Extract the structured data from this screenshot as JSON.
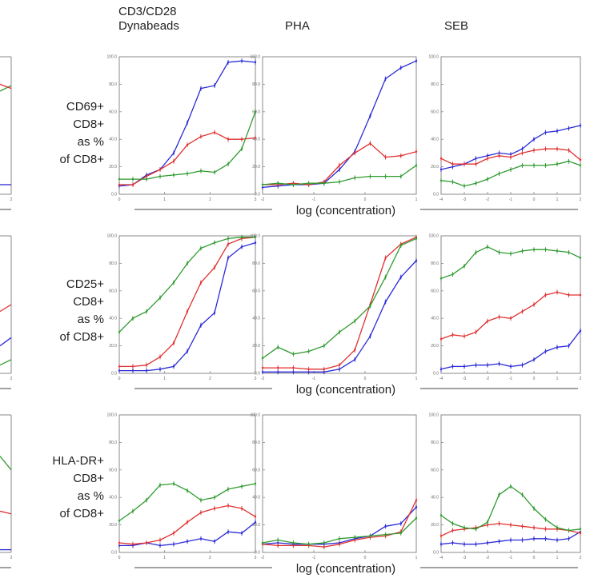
{
  "column_headers": [
    [
      "CD3/CD28",
      "Dynabeads"
    ],
    [
      "PHA"
    ],
    [
      "SEB"
    ]
  ],
  "row_labels": [
    [
      "CD69+",
      "CD8+",
      "as %",
      "of CD8+"
    ],
    [
      "CD25+",
      "CD8+",
      "as %",
      "of CD8+"
    ],
    [
      "HLA-DR+",
      "CD8+",
      "as %",
      "of CD8+"
    ]
  ],
  "shared_xlabel": "log (concentration)",
  "colors": {
    "blue": "#2a2ad6",
    "red": "#e03030",
    "green": "#2f9a2f",
    "axis": "#888888"
  },
  "chart_data": [
    {
      "type": "line",
      "row": 0,
      "col": 0,
      "ylim": [
        0,
        100
      ],
      "xlim": [
        0,
        3
      ],
      "yticks": [
        "0.0",
        "20.0",
        "40.0",
        "60.0",
        "80.0",
        "100.0"
      ],
      "xticks": [
        "0",
        "1",
        "2",
        "3"
      ],
      "x": [
        0,
        0.3,
        0.6,
        0.9,
        1.2,
        1.5,
        1.8,
        2.1,
        2.4,
        2.7,
        3.0
      ],
      "series": [
        {
          "color": "blue",
          "values": [
            6,
            7,
            14,
            18,
            30,
            52,
            77,
            79,
            96,
            97,
            96
          ]
        },
        {
          "color": "red",
          "values": [
            7,
            7,
            13,
            18,
            24,
            36,
            42,
            45,
            40,
            40,
            41
          ]
        },
        {
          "color": "green",
          "values": [
            11,
            11,
            11,
            13,
            14,
            15,
            17,
            16,
            22,
            33,
            60
          ]
        }
      ]
    },
    {
      "type": "line",
      "row": 0,
      "col": 1,
      "ylim": [
        0,
        100
      ],
      "xlim": [
        -2,
        1
      ],
      "yticks": [
        "0.0",
        "20.0",
        "40.0",
        "60.0",
        "80.0",
        "100.0"
      ],
      "xticks": [
        "-2",
        "-1",
        "0",
        "1"
      ],
      "x": [
        -2,
        -1.7,
        -1.4,
        -1.1,
        -0.8,
        -0.5,
        -0.2,
        0.1,
        0.4,
        0.7,
        1.0
      ],
      "series": [
        {
          "color": "blue",
          "values": [
            5,
            6,
            7,
            7,
            8,
            18,
            31,
            57,
            84,
            92,
            97
          ]
        },
        {
          "color": "red",
          "values": [
            7,
            7,
            8,
            7,
            9,
            21,
            30,
            37,
            27,
            28,
            31
          ]
        },
        {
          "color": "green",
          "values": [
            7,
            8,
            7,
            8,
            8,
            9,
            12,
            13,
            13,
            13,
            21
          ]
        }
      ]
    },
    {
      "type": "line",
      "row": 0,
      "col": 2,
      "ylim": [
        0,
        100
      ],
      "xlim": [
        -4,
        2
      ],
      "yticks": [
        "0.0",
        "20.0",
        "40.0",
        "60.0",
        "80.0",
        "100.0"
      ],
      "xticks": [
        "-4",
        "-3",
        "-2",
        "-1",
        "0",
        "1",
        "2"
      ],
      "x": [
        -4,
        -3.5,
        -3,
        -2.5,
        -2,
        -1.5,
        -1,
        -0.5,
        0,
        0.5,
        1,
        1.5,
        2
      ],
      "series": [
        {
          "color": "blue",
          "values": [
            18,
            20,
            22,
            26,
            28,
            30,
            29,
            33,
            40,
            45,
            46,
            48,
            50
          ]
        },
        {
          "color": "red",
          "values": [
            26,
            22,
            22,
            22,
            26,
            28,
            27,
            30,
            32,
            33,
            33,
            32,
            25
          ]
        },
        {
          "color": "green",
          "values": [
            10,
            9,
            6,
            8,
            11,
            15,
            18,
            21,
            21,
            21,
            22,
            24,
            21
          ]
        }
      ]
    },
    {
      "type": "line",
      "row": 1,
      "col": 0,
      "ylim": [
        0,
        100
      ],
      "xlim": [
        0,
        3
      ],
      "yticks": [
        "0.0",
        "20.0",
        "40.0",
        "60.0",
        "80.0",
        "100.0"
      ],
      "xticks": [
        "0",
        "1",
        "2",
        "3"
      ],
      "x": [
        0,
        0.3,
        0.6,
        0.9,
        1.2,
        1.5,
        1.8,
        2.1,
        2.4,
        2.7,
        3.0
      ],
      "series": [
        {
          "color": "blue",
          "values": [
            2,
            2,
            2,
            3,
            5,
            16,
            35,
            44,
            84,
            92,
            95
          ]
        },
        {
          "color": "red",
          "values": [
            5,
            5,
            6,
            12,
            22,
            45,
            66,
            77,
            94,
            98,
            99
          ]
        },
        {
          "color": "green",
          "values": [
            30,
            40,
            45,
            55,
            66,
            80,
            91,
            95,
            98,
            99,
            99
          ]
        }
      ]
    },
    {
      "type": "line",
      "row": 1,
      "col": 1,
      "ylim": [
        0,
        100
      ],
      "xlim": [
        -2,
        1
      ],
      "yticks": [
        "0.0",
        "20.0",
        "40.0",
        "60.0",
        "80.0",
        "100.0"
      ],
      "xticks": [
        "-2",
        "-1",
        "0",
        "1"
      ],
      "x": [
        -2,
        -1.7,
        -1.4,
        -1.1,
        -0.8,
        -0.5,
        -0.2,
        0.1,
        0.4,
        0.7,
        1.0
      ],
      "series": [
        {
          "color": "blue",
          "values": [
            1,
            1,
            1,
            1,
            1,
            3,
            10,
            27,
            52,
            70,
            82
          ]
        },
        {
          "color": "red",
          "values": [
            4,
            4,
            4,
            3,
            3,
            6,
            17,
            50,
            84,
            94,
            99
          ]
        },
        {
          "color": "green",
          "values": [
            11,
            19,
            14,
            16,
            20,
            30,
            38,
            49,
            70,
            93,
            98
          ]
        }
      ]
    },
    {
      "type": "line",
      "row": 1,
      "col": 2,
      "ylim": [
        0,
        100
      ],
      "xlim": [
        -4,
        2
      ],
      "yticks": [
        "0.0",
        "20.0",
        "40.0",
        "60.0",
        "80.0",
        "100.0"
      ],
      "xticks": [
        "-4",
        "-3",
        "-2",
        "-1",
        "0",
        "1",
        "2"
      ],
      "x": [
        -4,
        -3.5,
        -3,
        -2.5,
        -2,
        -1.5,
        -1,
        -0.5,
        0,
        0.5,
        1,
        1.5,
        2
      ],
      "series": [
        {
          "color": "blue",
          "values": [
            3,
            5,
            5,
            6,
            6,
            7,
            5,
            6,
            10,
            16,
            19,
            20,
            31
          ]
        },
        {
          "color": "red",
          "values": [
            25,
            28,
            27,
            30,
            38,
            41,
            40,
            45,
            50,
            57,
            59,
            57,
            57
          ]
        },
        {
          "color": "green",
          "values": [
            69,
            72,
            78,
            88,
            92,
            88,
            87,
            89,
            90,
            90,
            89,
            88,
            84
          ]
        }
      ]
    },
    {
      "type": "line",
      "row": 2,
      "col": 0,
      "ylim": [
        0,
        100
      ],
      "xlim": [
        0,
        3
      ],
      "yticks": [
        "0.0",
        "20.0",
        "40.0",
        "60.0",
        "80.0",
        "100.0"
      ],
      "xticks": [
        "0",
        "1",
        "2",
        "3"
      ],
      "x": [
        0,
        0.3,
        0.6,
        0.9,
        1.2,
        1.5,
        1.8,
        2.1,
        2.4,
        2.7,
        3.0
      ],
      "series": [
        {
          "color": "blue",
          "values": [
            5,
            5,
            7,
            5,
            6,
            8,
            10,
            8,
            15,
            14,
            22
          ]
        },
        {
          "color": "red",
          "values": [
            7,
            6,
            7,
            9,
            14,
            22,
            29,
            32,
            34,
            32,
            26
          ]
        },
        {
          "color": "green",
          "values": [
            23,
            30,
            38,
            49,
            50,
            45,
            38,
            40,
            46,
            48,
            50
          ]
        }
      ]
    },
    {
      "type": "line",
      "row": 2,
      "col": 1,
      "ylim": [
        0,
        100
      ],
      "xlim": [
        -2,
        1
      ],
      "yticks": [
        "0.0",
        "20.0",
        "40.0",
        "60.0",
        "80.0",
        "100.0"
      ],
      "xticks": [
        "-2",
        "-1",
        "0",
        "1"
      ],
      "x": [
        -2,
        -1.7,
        -1.4,
        -1.1,
        -0.8,
        -0.5,
        -0.2,
        0.1,
        0.4,
        0.7,
        1.0
      ],
      "series": [
        {
          "color": "blue",
          "values": [
            6,
            7,
            6,
            6,
            6,
            7,
            10,
            12,
            19,
            21,
            33
          ]
        },
        {
          "color": "red",
          "values": [
            6,
            5,
            5,
            5,
            4,
            6,
            9,
            11,
            12,
            15,
            38
          ]
        },
        {
          "color": "green",
          "values": [
            7,
            9,
            7,
            6,
            7,
            10,
            11,
            12,
            13,
            14,
            25
          ]
        }
      ]
    },
    {
      "type": "line",
      "row": 2,
      "col": 2,
      "ylim": [
        0,
        100
      ],
      "xlim": [
        -4,
        2
      ],
      "yticks": [
        "0.0",
        "20.0",
        "40.0",
        "60.0",
        "80.0",
        "100.0"
      ],
      "xticks": [
        "-4",
        "-3",
        "-2",
        "-1",
        "0",
        "1",
        "2"
      ],
      "x": [
        -4,
        -3.5,
        -3,
        -2.5,
        -2,
        -1.5,
        -1,
        -0.5,
        0,
        0.5,
        1,
        1.5,
        2
      ],
      "series": [
        {
          "color": "blue",
          "values": [
            6,
            7,
            6,
            6,
            7,
            8,
            9,
            9,
            10,
            10,
            9,
            10,
            15
          ]
        },
        {
          "color": "red",
          "values": [
            12,
            16,
            17,
            18,
            20,
            21,
            20,
            19,
            18,
            17,
            17,
            16,
            14
          ]
        },
        {
          "color": "green",
          "values": [
            27,
            21,
            18,
            17,
            22,
            42,
            48,
            42,
            32,
            24,
            18,
            16,
            17
          ]
        }
      ]
    }
  ],
  "partial_panels": [
    {
      "row": 0,
      "xtick": "2",
      "series": [
        {
          "color": "green",
          "values": [
            75,
            79
          ]
        },
        {
          "color": "red",
          "values": [
            80,
            77
          ]
        },
        {
          "color": "blue",
          "values": [
            7,
            7
          ]
        }
      ]
    },
    {
      "row": 1,
      "xtick": "2",
      "series": [
        {
          "color": "red",
          "values": [
            45,
            50
          ]
        },
        {
          "color": "blue",
          "values": [
            20,
            26
          ]
        },
        {
          "color": "green",
          "values": [
            6,
            10
          ]
        }
      ]
    },
    {
      "row": 2,
      "xtick": "2",
      "series": [
        {
          "color": "green",
          "values": [
            70,
            60
          ]
        },
        {
          "color": "red",
          "values": [
            30,
            28
          ]
        },
        {
          "color": "blue",
          "values": [
            2,
            2
          ]
        }
      ]
    }
  ]
}
